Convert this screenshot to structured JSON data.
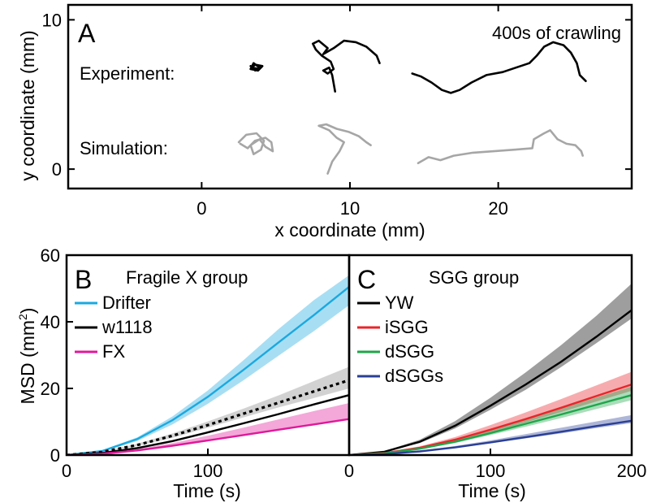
{
  "colors": {
    "black": "#000000",
    "gray_track": "#a6a6a6",
    "drifter": "#1aa9e0",
    "fx": "#e0199a",
    "ysg_band": "#888888",
    "isgg": "#e8262b",
    "dsgg": "#1fa64a",
    "dsggs": "#2a3f95"
  },
  "chart_data": [
    {
      "type": "line",
      "panel_label": "A",
      "annotation": "400s of crawling",
      "xlabel": "x coordinate (mm)",
      "ylabel": "y coordinate (mm)",
      "xlim": [
        -9,
        29
      ],
      "ylim": [
        -1.3,
        11
      ],
      "xticks": [
        0,
        10,
        20
      ],
      "yticks": [
        0,
        10
      ],
      "row_labels": [
        "Experiment:",
        "Simulation:"
      ],
      "series": [
        {
          "group": "experiment",
          "color": "black",
          "points": [
            [
              3.3,
              6.9
            ],
            [
              3.6,
              6.6
            ],
            [
              3.9,
              6.8
            ],
            [
              3.5,
              7.1
            ],
            [
              3.3,
              6.7
            ],
            [
              3.8,
              6.6
            ],
            [
              4.1,
              6.9
            ],
            [
              3.6,
              7.0
            ],
            [
              3.4,
              6.8
            ],
            [
              3.9,
              6.7
            ]
          ]
        },
        {
          "group": "experiment",
          "color": "black",
          "points": [
            [
              9.0,
              5.2
            ],
            [
              8.8,
              6.3
            ],
            [
              8.6,
              6.8
            ],
            [
              8.2,
              6.6
            ],
            [
              8.5,
              6.4
            ],
            [
              8.9,
              6.7
            ],
            [
              8.7,
              7.2
            ],
            [
              8.1,
              7.6
            ],
            [
              7.7,
              8.0
            ],
            [
              7.5,
              8.4
            ],
            [
              7.9,
              8.6
            ],
            [
              8.5,
              8.1
            ],
            [
              8.2,
              7.7
            ],
            [
              8.9,
              8.1
            ],
            [
              9.6,
              8.6
            ],
            [
              10.4,
              8.5
            ],
            [
              11.1,
              8.2
            ],
            [
              11.8,
              7.6
            ],
            [
              12.0,
              7.1
            ]
          ]
        },
        {
          "group": "experiment",
          "color": "black",
          "points": [
            [
              14.2,
              6.4
            ],
            [
              14.8,
              6.2
            ],
            [
              15.5,
              5.8
            ],
            [
              16.2,
              5.3
            ],
            [
              16.8,
              5.1
            ],
            [
              17.4,
              5.3
            ],
            [
              18.2,
              5.8
            ],
            [
              19.2,
              6.3
            ],
            [
              20.3,
              6.5
            ],
            [
              21.2,
              6.8
            ],
            [
              22.1,
              7.1
            ],
            [
              22.6,
              7.6
            ],
            [
              23.1,
              8.2
            ],
            [
              23.7,
              8.5
            ],
            [
              24.4,
              8.3
            ],
            [
              24.9,
              7.8
            ],
            [
              25.3,
              7.1
            ],
            [
              25.5,
              6.3
            ],
            [
              25.9,
              5.9
            ]
          ]
        },
        {
          "group": "simulation",
          "color": "gray_track",
          "points": [
            [
              2.5,
              1.8
            ],
            [
              3.0,
              2.3
            ],
            [
              3.7,
              2.4
            ],
            [
              4.2,
              1.9
            ],
            [
              4.0,
              1.3
            ],
            [
              3.5,
              1.0
            ],
            [
              3.3,
              1.6
            ],
            [
              3.9,
              2.0
            ],
            [
              4.3,
              1.5
            ],
            [
              4.8,
              1.2
            ],
            [
              4.7,
              1.8
            ],
            [
              4.3,
              2.1
            ],
            [
              3.6,
              1.9
            ],
            [
              3.1,
              1.4
            ],
            [
              2.6,
              1.7
            ]
          ]
        },
        {
          "group": "simulation",
          "color": "gray_track",
          "points": [
            [
              8.5,
              -0.3
            ],
            [
              8.8,
              0.5
            ],
            [
              9.3,
              1.2
            ],
            [
              9.6,
              1.8
            ],
            [
              9.1,
              2.1
            ],
            [
              8.6,
              2.6
            ],
            [
              7.9,
              2.9
            ],
            [
              8.4,
              3.0
            ],
            [
              9.1,
              2.7
            ],
            [
              9.9,
              2.5
            ],
            [
              10.6,
              2.2
            ],
            [
              11.1,
              1.8
            ],
            [
              11.4,
              1.6
            ]
          ]
        },
        {
          "group": "simulation",
          "color": "gray_track",
          "points": [
            [
              14.6,
              0.4
            ],
            [
              15.3,
              0.8
            ],
            [
              16.1,
              0.6
            ],
            [
              17.0,
              0.9
            ],
            [
              18.3,
              1.1
            ],
            [
              19.7,
              1.2
            ],
            [
              21.1,
              1.3
            ],
            [
              22.3,
              1.4
            ],
            [
              22.4,
              2.0
            ],
            [
              23.1,
              2.4
            ],
            [
              23.5,
              2.6
            ],
            [
              24.0,
              2.0
            ],
            [
              24.6,
              1.7
            ],
            [
              25.2,
              1.6
            ],
            [
              25.6,
              1.2
            ],
            [
              25.7,
              0.9
            ]
          ]
        }
      ]
    },
    {
      "type": "line",
      "panel_label": "B",
      "title": "Fragile X group",
      "xlabel": "Time (s)",
      "ylabel": "MSD (mm²)",
      "xlim": [
        0,
        200
      ],
      "ylim": [
        0,
        60
      ],
      "xticks": [
        0,
        100
      ],
      "yticks": [
        0,
        20,
        40,
        60
      ],
      "legend": [
        "Drifter",
        "w1118",
        "FX"
      ],
      "legend_placement": "top-left",
      "series": [
        {
          "name": "Drifter",
          "color": "drifter",
          "x": [
            0,
            25,
            50,
            75,
            100,
            125,
            150,
            175,
            200
          ],
          "y": [
            0,
            1.2,
            4.8,
            10.5,
            17.5,
            25.5,
            33.8,
            42,
            50.5
          ],
          "band_low": [
            0,
            1.0,
            4.2,
            9.2,
            15.4,
            22.4,
            29.8,
            37.2,
            45.0
          ],
          "band_high": [
            0,
            1.4,
            5.3,
            11.6,
            19.4,
            28.4,
            37.8,
            46.5,
            54.0
          ]
        },
        {
          "name": "w1118",
          "color": "black",
          "x": [
            0,
            25,
            50,
            75,
            100,
            125,
            150,
            175,
            200
          ],
          "y": [
            0,
            0.6,
            2.1,
            4.2,
            6.8,
            9.5,
            12.3,
            15.2,
            18.0
          ]
        },
        {
          "name": "w1118 sim",
          "color": "black",
          "dashed": true,
          "x": [
            0,
            25,
            50,
            75,
            100,
            125,
            150,
            175,
            200
          ],
          "y": [
            0,
            0.9,
            3.0,
            5.8,
            9.0,
            12.4,
            15.7,
            19.1,
            22.5
          ],
          "band_low": [
            0,
            0.8,
            2.7,
            5.2,
            8.2,
            11.3,
            14.3,
            17.1,
            20.0
          ],
          "band_high": [
            0,
            1.0,
            3.4,
            6.5,
            10.1,
            13.9,
            17.9,
            22.2,
            26.5
          ]
        },
        {
          "name": "FX",
          "color": "fx",
          "x": [
            0,
            25,
            50,
            75,
            100,
            125,
            150,
            175,
            200
          ],
          "y": [
            0,
            0.4,
            1.4,
            2.8,
            4.4,
            6.0,
            7.6,
            9.2,
            10.8
          ],
          "band_low": [
            0,
            0.4,
            1.3,
            2.6,
            4.1,
            5.8,
            7.4,
            9.1,
            10.8
          ],
          "band_high": [
            0,
            0.5,
            1.8,
            3.6,
            5.8,
            8.2,
            10.7,
            13.2,
            15.6
          ]
        }
      ]
    },
    {
      "type": "line",
      "panel_label": "C",
      "title": "SGG group",
      "xlabel": "Time (s)",
      "xlim": [
        0,
        200
      ],
      "ylim": [
        0,
        60
      ],
      "xticks": [
        0,
        100,
        200
      ],
      "legend": [
        "YW",
        "iSGG",
        "dSGG",
        "dSGGs"
      ],
      "legend_placement": "top-left",
      "series": [
        {
          "name": "YW",
          "color": "black",
          "x": [
            0,
            25,
            50,
            75,
            100,
            125,
            150,
            175,
            200
          ],
          "y": [
            0,
            1.0,
            4.0,
            8.8,
            14.8,
            21.2,
            28.0,
            35.5,
            43.5
          ],
          "band_low": [
            0,
            0.9,
            3.6,
            8.0,
            13.6,
            19.6,
            26.4,
            33.6,
            41.0
          ],
          "band_high": [
            0,
            1.2,
            4.6,
            10.2,
            17.2,
            24.8,
            33.0,
            41.8,
            51.5
          ]
        },
        {
          "name": "iSGG",
          "color": "isgg",
          "x": [
            0,
            25,
            50,
            75,
            100,
            125,
            150,
            175,
            200
          ],
          "y": [
            0,
            0.6,
            2.2,
            4.6,
            7.6,
            10.8,
            14.2,
            17.7,
            21.2
          ],
          "band_low": [
            0,
            0.5,
            2.0,
            4.2,
            6.9,
            9.8,
            12.9,
            16.1,
            19.3
          ],
          "band_high": [
            0,
            0.7,
            2.6,
            5.4,
            9.0,
            12.8,
            16.8,
            20.9,
            25.0
          ]
        },
        {
          "name": "dSGG",
          "color": "dsgg",
          "x": [
            0,
            25,
            50,
            75,
            100,
            125,
            150,
            175,
            200
          ],
          "y": [
            0,
            0.5,
            1.9,
            4.0,
            6.6,
            9.4,
            12.2,
            15.1,
            18.0
          ],
          "band_low": [
            0,
            0.4,
            1.7,
            3.6,
            6.0,
            8.5,
            11.1,
            13.8,
            16.5
          ],
          "band_high": [
            0,
            0.6,
            2.2,
            4.6,
            7.6,
            10.8,
            14.0,
            17.3,
            20.5
          ]
        },
        {
          "name": "dSGGs",
          "color": "dsggs",
          "x": [
            0,
            25,
            50,
            75,
            100,
            125,
            150,
            175,
            200
          ],
          "y": [
            0,
            0.3,
            1.1,
            2.3,
            3.8,
            5.4,
            7.0,
            8.7,
            10.3
          ],
          "band_low": [
            0,
            0.3,
            1.0,
            2.1,
            3.5,
            5.0,
            6.5,
            8.1,
            9.6
          ],
          "band_high": [
            0,
            0.4,
            1.3,
            2.7,
            4.4,
            6.3,
            8.2,
            10.1,
            12.0
          ]
        }
      ]
    }
  ]
}
